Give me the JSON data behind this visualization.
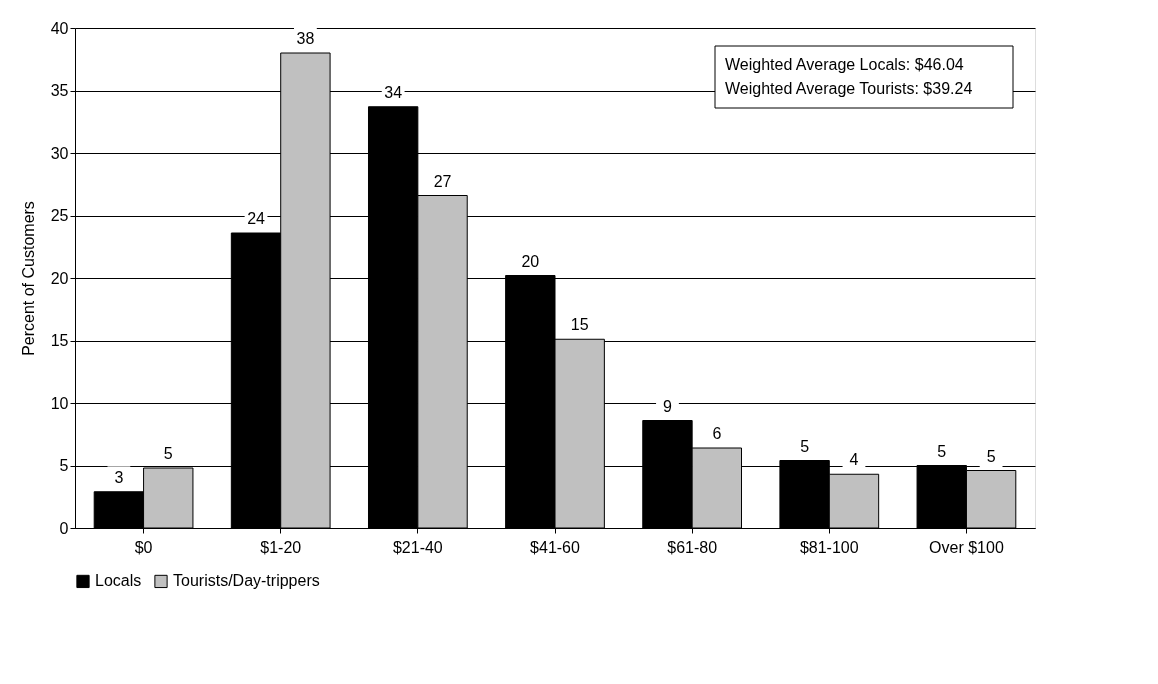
{
  "chart_data": {
    "type": "bar",
    "ylabel": "Percent of Customers",
    "categories": [
      "$0",
      "$1-20",
      "$21-40",
      "$41-60",
      "$61-80",
      "$81-100",
      "Over $100"
    ],
    "series": [
      {
        "name": "Locals",
        "color": "#000000",
        "values": [
          2.9,
          23.6,
          33.7,
          20.2,
          8.6,
          5.4,
          5.0
        ],
        "value_labels": [
          "3",
          "24",
          "34",
          "20",
          "9",
          "5",
          "5"
        ]
      },
      {
        "name": "Tourists/Day-trippers",
        "color": "#c0c0c0",
        "values": [
          4.8,
          38.0,
          26.6,
          15.1,
          6.4,
          4.3,
          4.6
        ],
        "value_labels": [
          "5",
          "38",
          "27",
          "15",
          "6",
          "4",
          "5"
        ]
      }
    ],
    "annotations": [
      "Weighted Average Locals: $46.04",
      "Weighted Average Tourists: $39.24"
    ],
    "ylim": [
      0,
      40
    ],
    "yticks": [
      0,
      5,
      10,
      15,
      20,
      25,
      30,
      35,
      40
    ],
    "grid": "y",
    "legend": "bottom"
  }
}
